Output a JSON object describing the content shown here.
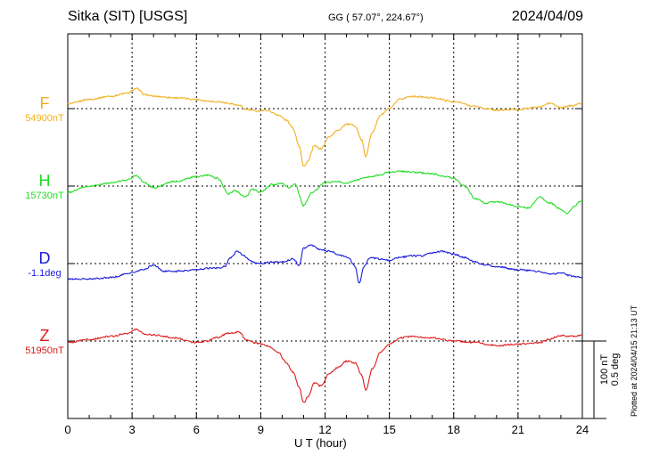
{
  "header": {
    "station": "Sitka (SIT)  [USGS]",
    "coords": "GG ( 57.07°, 224.67°)",
    "date": "2024/04/09"
  },
  "plotted_note": "Plotted at 2024/04/15 21:13 UT",
  "scale_note": {
    "line1": "100 nT",
    "line2": "0.5 deg"
  },
  "chart_data": {
    "type": "line",
    "xlabel": "U T (hour)",
    "xlim": [
      0,
      24
    ],
    "xticks": [
      0,
      3,
      6,
      9,
      12,
      15,
      18,
      21,
      24
    ],
    "grid": true,
    "series": [
      {
        "name": "F",
        "baseline_label": "54900nT",
        "color": "#f0b020",
        "x": [
          0,
          1,
          2,
          2.8,
          3.2,
          3.6,
          4,
          5,
          6,
          6.5,
          7,
          7.5,
          8,
          8.3,
          8.8,
          9.3,
          9.8,
          10.2,
          10.5,
          10.8,
          11,
          11.2,
          11.5,
          11.8,
          12.2,
          12.6,
          13,
          13.4,
          13.7,
          13.9,
          14.2,
          14.6,
          15,
          15.5,
          16,
          17,
          18,
          19,
          19.5,
          20,
          21,
          22,
          22.5,
          23,
          23.5,
          24
        ],
        "values": [
          6,
          12,
          16,
          20,
          26,
          18,
          16,
          14,
          12,
          10,
          9,
          7,
          4,
          -1,
          -3,
          -2,
          -8,
          -15,
          -25,
          -48,
          -75,
          -68,
          -48,
          -52,
          -36,
          -28,
          -20,
          -22,
          -40,
          -62,
          -30,
          -8,
          0,
          12,
          16,
          14,
          9,
          3,
          0,
          -2,
          -1,
          2,
          7,
          1,
          4,
          7
        ]
      },
      {
        "name": "H",
        "baseline_label": "15730nT",
        "color": "#22dd22",
        "x": [
          0,
          1,
          2,
          2.8,
          3.2,
          3.6,
          4,
          5,
          6,
          6.5,
          7,
          7.5,
          7.8,
          8.3,
          8.6,
          9,
          9.5,
          10,
          10.3,
          10.6,
          11,
          11.4,
          12,
          12.5,
          13,
          13.5,
          14,
          14.5,
          15,
          15.5,
          16,
          17,
          17.5,
          18,
          18.5,
          19,
          19.5,
          20,
          21,
          21.5,
          22,
          22.5,
          23,
          23.3,
          23.6,
          24
        ],
        "values": [
          -8,
          0,
          4,
          8,
          14,
          4,
          -2,
          6,
          12,
          14,
          10,
          -10,
          -6,
          -14,
          -4,
          -8,
          2,
          3,
          -2,
          2,
          -25,
          -8,
          4,
          6,
          4,
          8,
          12,
          14,
          18,
          19,
          18,
          16,
          13,
          10,
          0,
          -16,
          -22,
          -20,
          -26,
          -28,
          -14,
          -22,
          -30,
          -36,
          -26,
          -18
        ]
      },
      {
        "name": "D",
        "baseline_label": "-1.1deg",
        "color": "#1a1add",
        "x": [
          0,
          1,
          2,
          3,
          3.5,
          4,
          4.5,
          5,
          6,
          6.5,
          7,
          7.3,
          7.6,
          7.9,
          8.2,
          8.6,
          9,
          9.5,
          10,
          10.5,
          10.8,
          11,
          11.3,
          11.8,
          12.2,
          12.8,
          13.1,
          13.4,
          13.6,
          13.8,
          14.1,
          14.5,
          15,
          15.5,
          16,
          16.5,
          17,
          17.5,
          18,
          18.5,
          19,
          19.5,
          20,
          21,
          22,
          22.5,
          23,
          23.5,
          24
        ],
        "values": [
          -20,
          -20,
          -18,
          -12,
          -8,
          -2,
          -10,
          -10,
          -8,
          -6,
          -6,
          -4,
          8,
          16,
          10,
          2,
          0,
          2,
          2,
          6,
          -2,
          20,
          24,
          18,
          16,
          10,
          8,
          -4,
          -26,
          -4,
          8,
          6,
          4,
          8,
          10,
          10,
          14,
          16,
          12,
          8,
          2,
          -2,
          -4,
          -8,
          -10,
          -14,
          -12,
          -16,
          -18
        ]
      },
      {
        "name": "Z",
        "baseline_label": "51950nT",
        "color": "#dd1a1a",
        "x": [
          0,
          1,
          2,
          2.8,
          3.2,
          3.6,
          4,
          5,
          6,
          6.5,
          7,
          7.5,
          8,
          8.3,
          8.8,
          9.3,
          9.8,
          10.2,
          10.5,
          10.8,
          11,
          11.2,
          11.5,
          11.8,
          12.2,
          12.6,
          13,
          13.4,
          13.7,
          13.9,
          14.2,
          14.6,
          15,
          15.5,
          16,
          17,
          18,
          19,
          19.5,
          20,
          21,
          22,
          22.5,
          23,
          23.5,
          24
        ],
        "values": [
          -2,
          2,
          6,
          10,
          15,
          9,
          8,
          4,
          -2,
          0,
          5,
          10,
          12,
          2,
          -3,
          -6,
          -14,
          -28,
          -40,
          -60,
          -80,
          -72,
          -54,
          -58,
          -42,
          -34,
          -26,
          -28,
          -44,
          -64,
          -36,
          -14,
          -4,
          4,
          6,
          4,
          0,
          -2,
          -4,
          -6,
          -4,
          -2,
          3,
          7,
          6,
          8
        ]
      }
    ]
  }
}
